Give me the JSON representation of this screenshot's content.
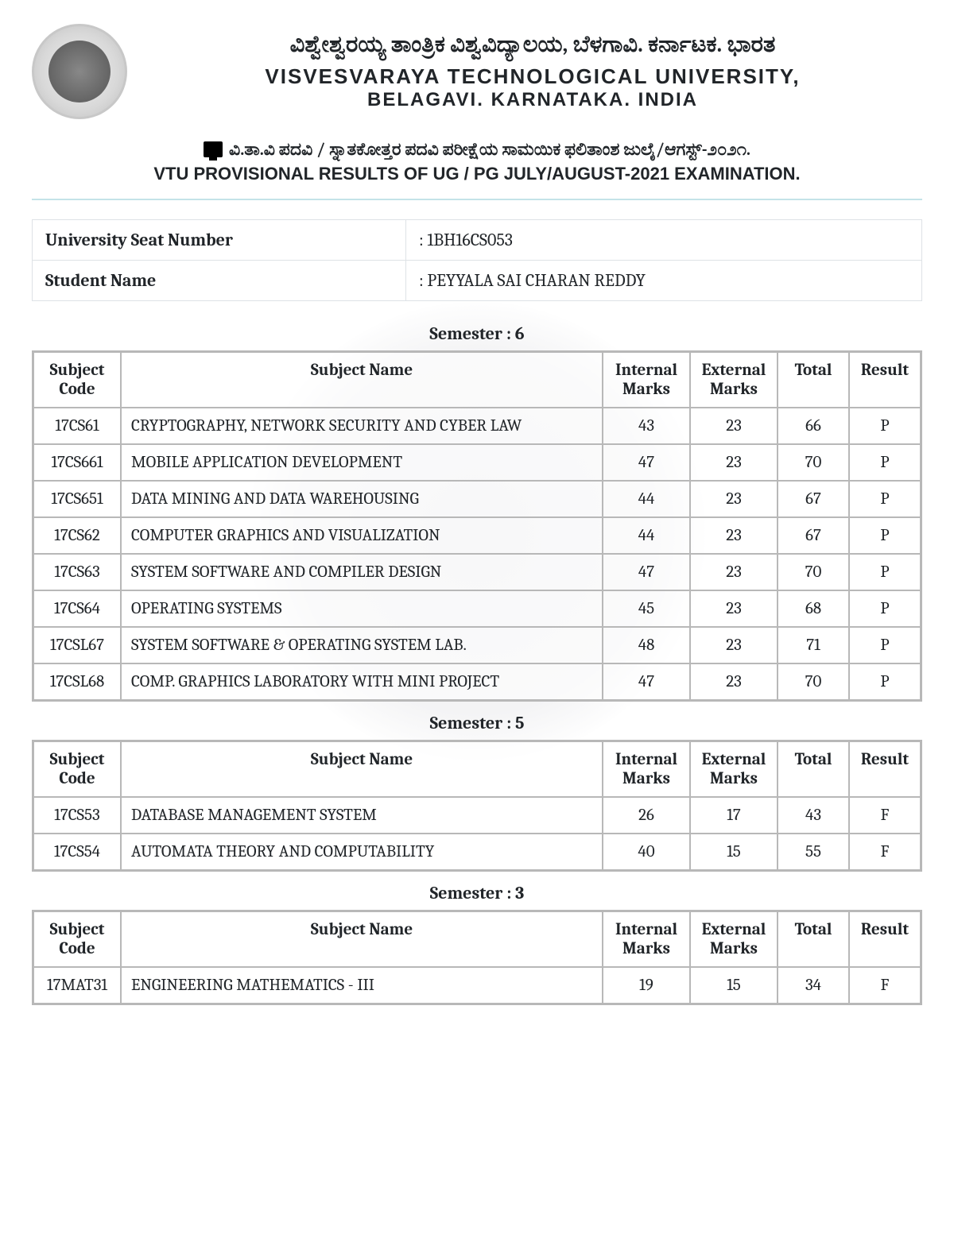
{
  "header": {
    "kn": "ವಿಶ್ವೇಶ್ವರಯ್ಯ ತಾಂತ್ರಿಕ ವಿಶ್ವವಿದ್ಯಾಲಯ, ಬೆಳಗಾವಿ. ಕರ್ನಾಟಕ. ಭಾರತ",
    "en_line1": "VISVESVARAYA TECHNOLOGICAL UNIVERSITY,",
    "en_line2": "BELAGAVI. KARNATAKA. INDIA"
  },
  "subtitle": {
    "kn": "ವಿ.ತಾ.ವಿ ಪದವಿ / ಸ್ನಾತಕೋತ್ತರ ಪದವಿ ಪರೀಕ್ಷೆಯ ಸಾಮಯಿಕ ಫಲಿತಾಂಶ ಜುಲೈ/ಆಗಸ್ಟ್-೨೦೨೧.",
    "en": "VTU PROVISIONAL RESULTS OF UG / PG JULY/AUGUST-2021 EXAMINATION."
  },
  "student": {
    "usn_label": "University Seat Number",
    "usn_value": ": 1BH16CS053",
    "name_label": "Student Name",
    "name_value": ": PEYYALA SAI CHARAN REDDY"
  },
  "columns": {
    "code": "Subject Code",
    "name": "Subject Name",
    "internal": "Internal Marks",
    "external": "External Marks",
    "total": "Total",
    "result": "Result"
  },
  "semesters": [
    {
      "title": "Semester : 6",
      "rows": [
        {
          "code": "17CS61",
          "name": "CRYPTOGRAPHY, NETWORK SECURITY AND CYBER LAW",
          "internal": "43",
          "external": "23",
          "total": "66",
          "result": "P"
        },
        {
          "code": "17CS661",
          "name": "MOBILE APPLICATION DEVELOPMENT",
          "internal": "47",
          "external": "23",
          "total": "70",
          "result": "P"
        },
        {
          "code": "17CS651",
          "name": "DATA MINING AND DATA WAREHOUSING",
          "internal": "44",
          "external": "23",
          "total": "67",
          "result": "P"
        },
        {
          "code": "17CS62",
          "name": "COMPUTER GRAPHICS AND VISUALIZATION",
          "internal": "44",
          "external": "23",
          "total": "67",
          "result": "P"
        },
        {
          "code": "17CS63",
          "name": "SYSTEM SOFTWARE AND COMPILER DESIGN",
          "internal": "47",
          "external": "23",
          "total": "70",
          "result": "P"
        },
        {
          "code": "17CS64",
          "name": "OPERATING SYSTEMS",
          "internal": "45",
          "external": "23",
          "total": "68",
          "result": "P"
        },
        {
          "code": "17CSL67",
          "name": "SYSTEM SOFTWARE & OPERATING SYSTEM LAB.",
          "internal": "48",
          "external": "23",
          "total": "71",
          "result": "P"
        },
        {
          "code": "17CSL68",
          "name": "COMP. GRAPHICS LABORATORY WITH MINI PROJECT",
          "internal": "47",
          "external": "23",
          "total": "70",
          "result": "P"
        }
      ]
    },
    {
      "title": "Semester : 5",
      "rows": [
        {
          "code": "17CS53",
          "name": "DATABASE MANAGEMENT SYSTEM",
          "internal": "26",
          "external": "17",
          "total": "43",
          "result": "F"
        },
        {
          "code": "17CS54",
          "name": "AUTOMATA THEORY AND COMPUTABILITY",
          "internal": "40",
          "external": "15",
          "total": "55",
          "result": "F"
        }
      ]
    },
    {
      "title": "Semester : 3",
      "rows": [
        {
          "code": "17MAT31",
          "name": "ENGINEERING MATHEMATICS - III",
          "internal": "19",
          "external": "15",
          "total": "34",
          "result": "F"
        }
      ]
    }
  ]
}
